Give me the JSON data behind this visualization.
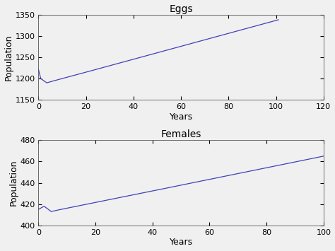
{
  "eggs_title": "Eggs",
  "females_title": "Females",
  "xlabel": "Years",
  "ylabel": "Population",
  "eggs_xlim": [
    0,
    120
  ],
  "eggs_ylim": [
    1150,
    1350
  ],
  "eggs_yticks": [
    1150,
    1200,
    1250,
    1300,
    1350
  ],
  "eggs_xticks": [
    0,
    20,
    40,
    60,
    80,
    100,
    120
  ],
  "females_xlim": [
    0,
    100
  ],
  "females_ylim": [
    400,
    480
  ],
  "females_yticks": [
    400,
    420,
    440,
    460,
    480
  ],
  "females_xticks": [
    0,
    20,
    40,
    60,
    80,
    100
  ],
  "line_color": "#4040bb",
  "bg_color": "#f0f0f0"
}
